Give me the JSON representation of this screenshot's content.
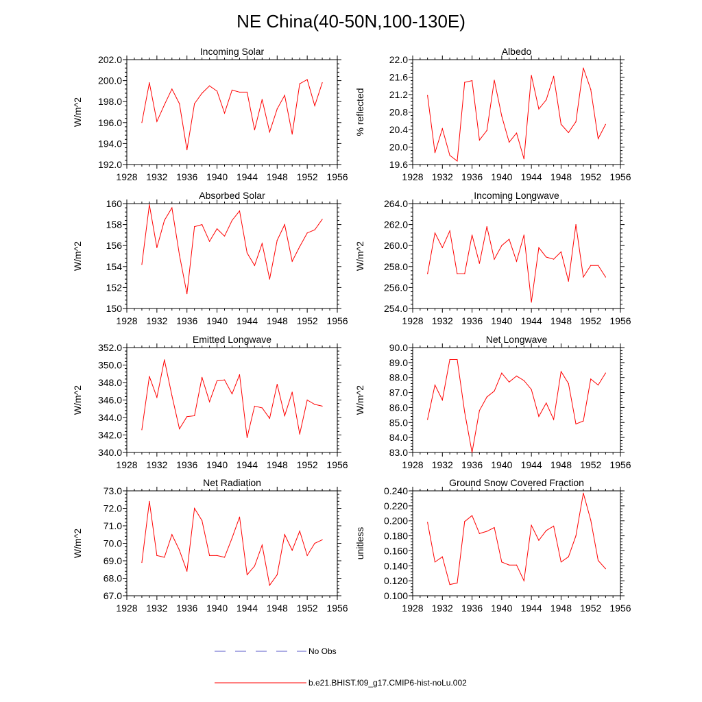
{
  "title": "NE China(40-50N,100-130E)",
  "colors": {
    "model": "#ff0000",
    "obs": "#5a5ac8",
    "axis": "#000000"
  },
  "legend": [
    {
      "label": "No Obs",
      "style": "dashed",
      "color": "#5a5ac8"
    },
    {
      "label": "b.e21.BHIST.f09_g17.CMIP6-hist-noLu.002",
      "style": "solid",
      "color": "#ff0000"
    }
  ],
  "chart_data": [
    {
      "type": "line",
      "title": "Incoming Solar",
      "ylabel": "W/m^2",
      "xlabel": "",
      "xlim": [
        1928,
        1956
      ],
      "ylim": [
        192,
        202
      ],
      "xticks": [
        "1928",
        "1932",
        "1936",
        "1940",
        "1944",
        "1948",
        "1952",
        "1956"
      ],
      "yticks": [
        "192.0",
        "194.0",
        "196.0",
        "198.0",
        "200.0",
        "202.0"
      ],
      "x": [
        1930,
        1931,
        1932,
        1933,
        1934,
        1935,
        1936,
        1937,
        1938,
        1939,
        1940,
        1941,
        1942,
        1943,
        1944,
        1945,
        1946,
        1947,
        1948,
        1949,
        1950,
        1951,
        1952,
        1953,
        1954
      ],
      "series": [
        {
          "values": [
            196.0,
            199.8,
            196.1,
            197.7,
            199.2,
            197.8,
            193.4,
            197.8,
            198.8,
            199.5,
            199.0,
            196.9,
            199.1,
            198.9,
            198.9,
            195.3,
            198.2,
            195.1,
            197.3,
            198.6,
            194.9,
            199.7,
            200.1,
            197.6,
            199.8
          ]
        }
      ]
    },
    {
      "type": "line",
      "title": "Albedo",
      "ylabel": "% reflected",
      "xlabel": "",
      "xlim": [
        1928,
        1956
      ],
      "ylim": [
        19.6,
        22.0
      ],
      "xticks": [
        "1928",
        "1932",
        "1936",
        "1940",
        "1944",
        "1948",
        "1952",
        "1956"
      ],
      "yticks": [
        "19.6",
        "20.0",
        "20.4",
        "20.8",
        "21.2",
        "21.6",
        "22.0"
      ],
      "x": [
        1930,
        1931,
        1932,
        1933,
        1934,
        1935,
        1936,
        1937,
        1938,
        1939,
        1940,
        1941,
        1942,
        1943,
        1944,
        1945,
        1946,
        1947,
        1948,
        1949,
        1950,
        1951,
        1952,
        1953,
        1954
      ],
      "series": [
        {
          "values": [
            21.18,
            19.87,
            20.42,
            19.81,
            19.68,
            21.48,
            21.52,
            20.16,
            20.38,
            21.53,
            20.71,
            20.11,
            20.32,
            19.73,
            21.64,
            20.87,
            21.08,
            21.62,
            20.52,
            20.33,
            20.58,
            21.81,
            21.32,
            20.19,
            20.52
          ]
        }
      ]
    },
    {
      "type": "line",
      "title": "Absorbed Solar",
      "ylabel": "W/m^2",
      "xlabel": "",
      "xlim": [
        1928,
        1956
      ],
      "ylim": [
        150,
        160
      ],
      "xticks": [
        "1928",
        "1932",
        "1936",
        "1940",
        "1944",
        "1948",
        "1952",
        "1956"
      ],
      "yticks": [
        "150",
        "152",
        "154",
        "156",
        "158",
        "160"
      ],
      "x": [
        1930,
        1931,
        1932,
        1933,
        1934,
        1935,
        1936,
        1937,
        1938,
        1939,
        1940,
        1941,
        1942,
        1943,
        1944,
        1945,
        1946,
        1947,
        1948,
        1949,
        1950,
        1951,
        1952,
        1953,
        1954
      ],
      "series": [
        {
          "values": [
            154.2,
            159.9,
            155.8,
            158.4,
            159.6,
            155.1,
            151.4,
            157.8,
            158.0,
            156.4,
            157.6,
            156.9,
            158.4,
            159.3,
            155.3,
            154.1,
            156.2,
            152.8,
            156.5,
            158.0,
            154.5,
            155.9,
            157.2,
            157.5,
            158.5
          ]
        }
      ]
    },
    {
      "type": "line",
      "title": "Incoming Longwave",
      "ylabel": "W/m^2",
      "xlabel": "",
      "xlim": [
        1928,
        1956
      ],
      "ylim": [
        254,
        264
      ],
      "xticks": [
        "1928",
        "1932",
        "1936",
        "1940",
        "1944",
        "1948",
        "1952",
        "1956"
      ],
      "yticks": [
        "254.0",
        "256.0",
        "258.0",
        "260.0",
        "262.0",
        "264.0"
      ],
      "x": [
        1930,
        1931,
        1932,
        1933,
        1934,
        1935,
        1936,
        1937,
        1938,
        1939,
        1940,
        1941,
        1942,
        1943,
        1944,
        1945,
        1946,
        1947,
        1948,
        1949,
        1950,
        1951,
        1952,
        1953,
        1954
      ],
      "series": [
        {
          "values": [
            257.3,
            261.2,
            259.8,
            261.4,
            257.3,
            257.3,
            261.0,
            258.3,
            261.8,
            258.7,
            260.0,
            260.6,
            258.5,
            261.0,
            254.6,
            259.8,
            258.9,
            258.7,
            259.4,
            256.6,
            262.0,
            257.0,
            258.1,
            258.1,
            257.0
          ]
        }
      ]
    },
    {
      "type": "line",
      "title": "Emitted Longwave",
      "ylabel": "W/m^2",
      "xlabel": "",
      "xlim": [
        1928,
        1956
      ],
      "ylim": [
        340,
        352
      ],
      "xticks": [
        "1928",
        "1932",
        "1936",
        "1940",
        "1944",
        "1948",
        "1952",
        "1956"
      ],
      "yticks": [
        "340.0",
        "342.0",
        "344.0",
        "346.0",
        "348.0",
        "350.0",
        "352.0"
      ],
      "x": [
        1930,
        1931,
        1932,
        1933,
        1934,
        1935,
        1936,
        1937,
        1938,
        1939,
        1940,
        1941,
        1942,
        1943,
        1944,
        1945,
        1946,
        1947,
        1948,
        1949,
        1950,
        1951,
        1952,
        1953,
        1954
      ],
      "series": [
        {
          "values": [
            342.6,
            348.7,
            346.3,
            350.6,
            346.5,
            342.7,
            344.1,
            344.2,
            348.6,
            345.8,
            348.2,
            348.3,
            346.7,
            348.9,
            341.7,
            345.3,
            345.1,
            343.9,
            347.8,
            344.2,
            346.9,
            342.1,
            346.0,
            345.5,
            345.3
          ]
        }
      ]
    },
    {
      "type": "line",
      "title": "Net Longwave",
      "ylabel": "W/m^2",
      "xlabel": "",
      "xlim": [
        1928,
        1956
      ],
      "ylim": [
        83,
        90
      ],
      "xticks": [
        "1928",
        "1932",
        "1936",
        "1940",
        "1944",
        "1948",
        "1952",
        "1956"
      ],
      "yticks": [
        "83.0",
        "84.0",
        "85.0",
        "86.0",
        "87.0",
        "88.0",
        "89.0",
        "90.0"
      ],
      "x": [
        1930,
        1931,
        1932,
        1933,
        1934,
        1935,
        1936,
        1937,
        1938,
        1939,
        1940,
        1941,
        1942,
        1943,
        1944,
        1945,
        1946,
        1947,
        1948,
        1949,
        1950,
        1951,
        1952,
        1953,
        1954
      ],
      "series": [
        {
          "values": [
            85.2,
            87.5,
            86.5,
            89.2,
            89.2,
            85.7,
            83.0,
            85.8,
            86.7,
            87.1,
            88.3,
            87.7,
            88.1,
            87.8,
            87.2,
            85.4,
            86.3,
            85.2,
            88.4,
            87.6,
            84.9,
            85.1,
            87.9,
            87.5,
            88.3
          ]
        }
      ]
    },
    {
      "type": "line",
      "title": "Net Radiation",
      "ylabel": "W/m^2",
      "xlabel": "",
      "xlim": [
        1928,
        1956
      ],
      "ylim": [
        67,
        73
      ],
      "xticks": [
        "1928",
        "1932",
        "1936",
        "1940",
        "1944",
        "1948",
        "1952",
        "1956"
      ],
      "yticks": [
        "67.0",
        "68.0",
        "69.0",
        "70.0",
        "71.0",
        "72.0",
        "73.0"
      ],
      "x": [
        1930,
        1931,
        1932,
        1933,
        1934,
        1935,
        1936,
        1937,
        1938,
        1939,
        1940,
        1941,
        1942,
        1943,
        1944,
        1945,
        1946,
        1947,
        1948,
        1949,
        1950,
        1951,
        1952,
        1953,
        1954
      ],
      "series": [
        {
          "values": [
            68.9,
            72.4,
            69.3,
            69.2,
            70.5,
            69.6,
            68.4,
            72.0,
            71.3,
            69.3,
            69.3,
            69.2,
            70.3,
            71.5,
            68.2,
            68.7,
            69.9,
            67.6,
            68.2,
            70.5,
            69.6,
            70.7,
            69.3,
            70.0,
            70.2
          ]
        }
      ]
    },
    {
      "type": "line",
      "title": "Ground Snow Covered Fraction",
      "ylabel": "unitless",
      "xlabel": "",
      "xlim": [
        1928,
        1956
      ],
      "ylim": [
        0.1,
        0.24
      ],
      "xticks": [
        "1928",
        "1932",
        "1936",
        "1940",
        "1944",
        "1948",
        "1952",
        "1956"
      ],
      "yticks": [
        "0.100",
        "0.120",
        "0.140",
        "0.160",
        "0.180",
        "0.200",
        "0.220",
        "0.240"
      ],
      "x": [
        1930,
        1931,
        1932,
        1933,
        1934,
        1935,
        1936,
        1937,
        1938,
        1939,
        1940,
        1941,
        1942,
        1943,
        1944,
        1945,
        1946,
        1947,
        1948,
        1949,
        1950,
        1951,
        1952,
        1953,
        1954
      ],
      "series": [
        {
          "values": [
            0.198,
            0.145,
            0.152,
            0.115,
            0.117,
            0.199,
            0.207,
            0.183,
            0.186,
            0.191,
            0.145,
            0.141,
            0.141,
            0.12,
            0.194,
            0.174,
            0.187,
            0.193,
            0.145,
            0.152,
            0.18,
            0.237,
            0.201,
            0.147,
            0.136
          ]
        }
      ]
    }
  ]
}
